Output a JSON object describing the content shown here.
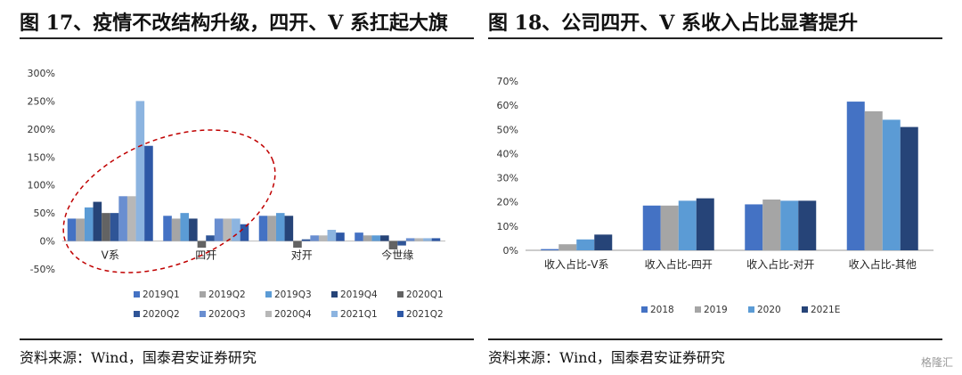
{
  "left": {
    "title": "图 17、疫情不改结构升级，四开、V 系扛起大旗",
    "source": "资料来源：Wind，国泰君安证券研究"
  },
  "right": {
    "title": "图 18、公司四开、V 系收入占比显著提升",
    "source": "资料来源：Wind，国泰君安证券研究"
  },
  "watermark": "格隆汇",
  "chart_data": [
    {
      "type": "bar",
      "title": "",
      "categories": [
        "V系",
        "四开",
        "对开",
        "今世缘"
      ],
      "yticks": [
        "300%",
        "250%",
        "200%",
        "150%",
        "100%",
        "50%",
        "0%",
        "-50%"
      ],
      "ylim": [
        -50,
        300
      ],
      "unit": "%",
      "legend_position": "bottom",
      "series": [
        {
          "name": "2019Q1",
          "color": "#4472C4",
          "values": [
            40,
            45,
            45,
            15
          ]
        },
        {
          "name": "2019Q2",
          "color": "#A5A5A5",
          "values": [
            40,
            40,
            45,
            10
          ]
        },
        {
          "name": "2019Q3",
          "color": "#5B9BD5",
          "values": [
            60,
            50,
            50,
            10
          ]
        },
        {
          "name": "2019Q4",
          "color": "#264478",
          "values": [
            70,
            40,
            45,
            10
          ]
        },
        {
          "name": "2020Q1",
          "color": "#636363",
          "values": [
            50,
            -12,
            -12,
            -15
          ]
        },
        {
          "name": "2020Q2",
          "color": "#2F5597",
          "values": [
            50,
            10,
            3,
            -8
          ]
        },
        {
          "name": "2020Q3",
          "color": "#698ED0",
          "values": [
            80,
            40,
            10,
            5
          ]
        },
        {
          "name": "2020Q4",
          "color": "#B7B7B7",
          "values": [
            80,
            40,
            10,
            5
          ]
        },
        {
          "name": "2021Q1",
          "color": "#8CB4E0",
          "values": [
            250,
            40,
            20,
            5
          ]
        },
        {
          "name": "2021Q2",
          "color": "#2E58A6",
          "values": [
            170,
            30,
            15,
            5
          ]
        }
      ]
    },
    {
      "type": "bar",
      "title": "",
      "categories": [
        "收入占比-V系",
        "收入占比-四开",
        "收入占比-对开",
        "收入占比-其他"
      ],
      "yticks": [
        "70%",
        "60%",
        "50%",
        "40%",
        "30%",
        "20%",
        "10%",
        "0%"
      ],
      "ylim": [
        0,
        70
      ],
      "unit": "%",
      "legend_position": "bottom",
      "series": [
        {
          "name": "2018",
          "color": "#4472C4",
          "values": [
            0.5,
            18.5,
            19,
            61.5
          ]
        },
        {
          "name": "2019",
          "color": "#A5A5A5",
          "values": [
            2.5,
            18.5,
            21,
            57.5
          ]
        },
        {
          "name": "2020",
          "color": "#5B9BD5",
          "values": [
            4.5,
            20.5,
            20.5,
            54
          ]
        },
        {
          "name": "2021E",
          "color": "#264478",
          "values": [
            6.5,
            21.5,
            20.5,
            51
          ]
        }
      ]
    }
  ]
}
